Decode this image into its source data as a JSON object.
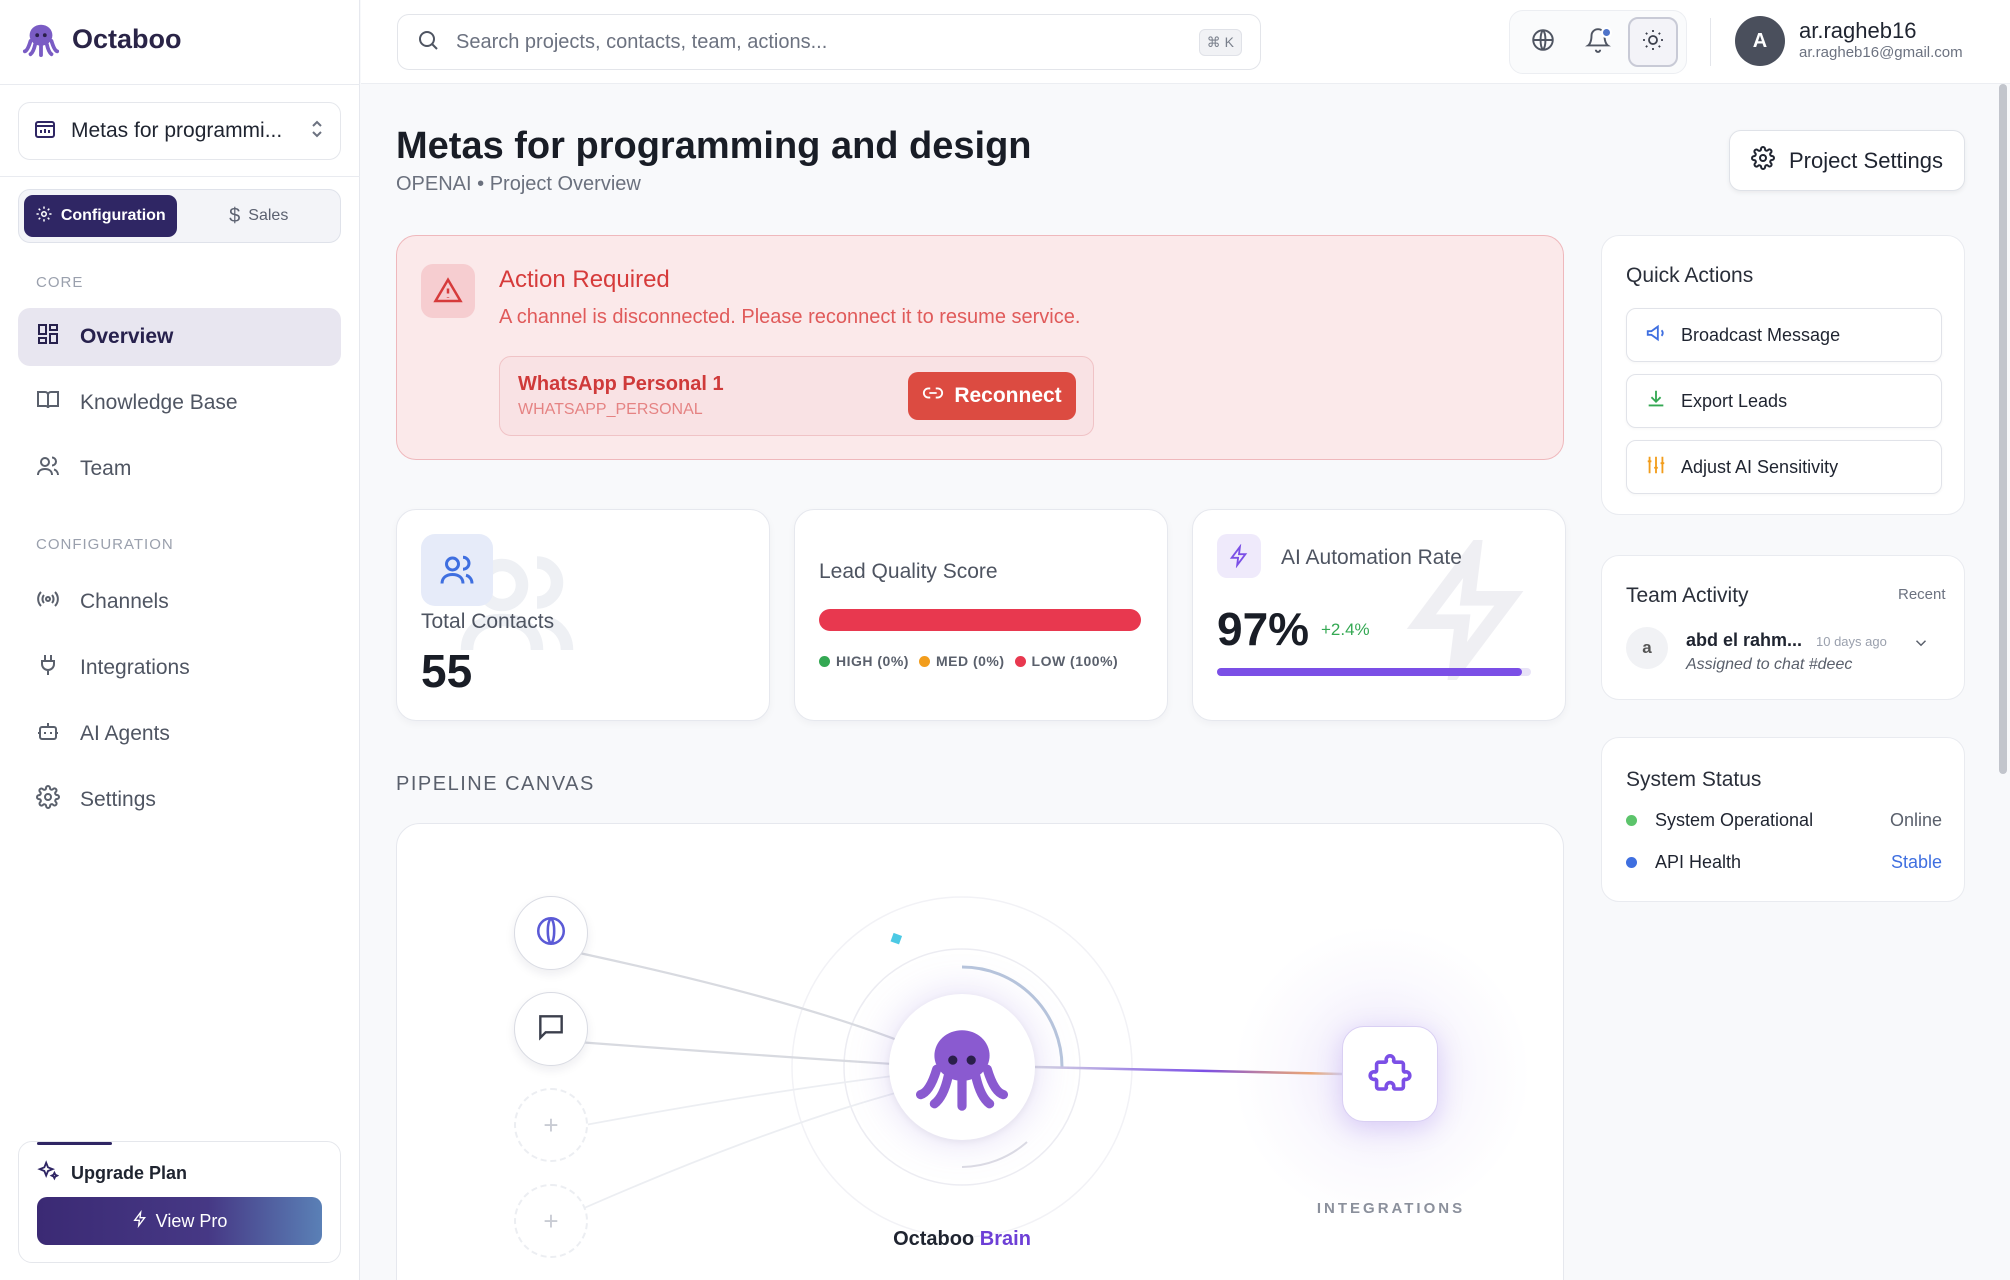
{
  "app": {
    "name": "Octaboo"
  },
  "sidebar": {
    "project": "Metas for programmi...",
    "modes": [
      "Configuration",
      "Sales"
    ],
    "sections": {
      "core": "CORE",
      "configuration": "CONFIGURATION"
    },
    "items": [
      {
        "label": "Overview",
        "icon": "grid-icon"
      },
      {
        "label": "Knowledge Base",
        "icon": "book-icon"
      },
      {
        "label": "Team",
        "icon": "users-icon"
      },
      {
        "label": "Channels",
        "icon": "broadcast-icon"
      },
      {
        "label": "Integrations",
        "icon": "plug-icon"
      },
      {
        "label": "AI Agents",
        "icon": "robot-icon"
      },
      {
        "label": "Settings",
        "icon": "gear-icon"
      }
    ],
    "upgrade": {
      "title": "Upgrade Plan",
      "button": "View Pro"
    }
  },
  "topbar": {
    "search_placeholder": "Search projects, contacts, team, actions...",
    "shortcut": "⌘ K",
    "user": {
      "initial": "A",
      "name": "ar.ragheb16",
      "email": "ar.ragheb16@gmail.com"
    }
  },
  "page": {
    "title": "Metas for programming and design",
    "subtitle": "OPENAI • Project Overview",
    "settings_button": "Project Settings"
  },
  "alert": {
    "title": "Action Required",
    "message": "A channel is disconnected. Please reconnect it to resume service.",
    "channel_name": "WhatsApp Personal 1",
    "channel_type": "WHATSAPP_PERSONAL",
    "button": "Reconnect"
  },
  "stats": {
    "contacts": {
      "label": "Total Contacts",
      "value": "55"
    },
    "lead_quality": {
      "label": "Lead Quality Score",
      "legend": [
        {
          "label": "HIGH (0%)",
          "color": "#34a853",
          "value": 0
        },
        {
          "label": "MED (0%)",
          "color": "#f29d1c",
          "value": 0
        },
        {
          "label": "LOW (100%)",
          "color": "#e8384f",
          "value": 100
        }
      ]
    },
    "automation": {
      "label": "AI Automation Rate",
      "value": "97%",
      "delta": "+2.4%",
      "progress": 0.97
    }
  },
  "pipeline": {
    "section_label": "PIPELINE CANVAS",
    "brain_name": "Octaboo",
    "brain_accent": "Brain",
    "integrations_label": "INTEGRATIONS"
  },
  "quick_actions": {
    "title": "Quick Actions",
    "items": [
      {
        "label": "Broadcast Message",
        "icon": "megaphone-icon"
      },
      {
        "label": "Export Leads",
        "icon": "download-icon"
      },
      {
        "label": "Adjust AI Sensitivity",
        "icon": "sliders-icon"
      }
    ]
  },
  "team_activity": {
    "title": "Team Activity",
    "filter": "Recent",
    "entries": [
      {
        "initial": "a",
        "name": "abd el rahm...",
        "time": "10 days ago",
        "detail": "Assigned to chat #deec"
      }
    ]
  },
  "system_status": {
    "title": "System Status",
    "rows": [
      {
        "label": "System Operational",
        "value": "Online",
        "color": "#5cc46b"
      },
      {
        "label": "API Health",
        "value": "Stable",
        "color": "#3f6fe0"
      }
    ]
  },
  "colors": {
    "brand": "#2f2664",
    "accent": "#7b4fe6",
    "danger": "#dc4b41"
  }
}
